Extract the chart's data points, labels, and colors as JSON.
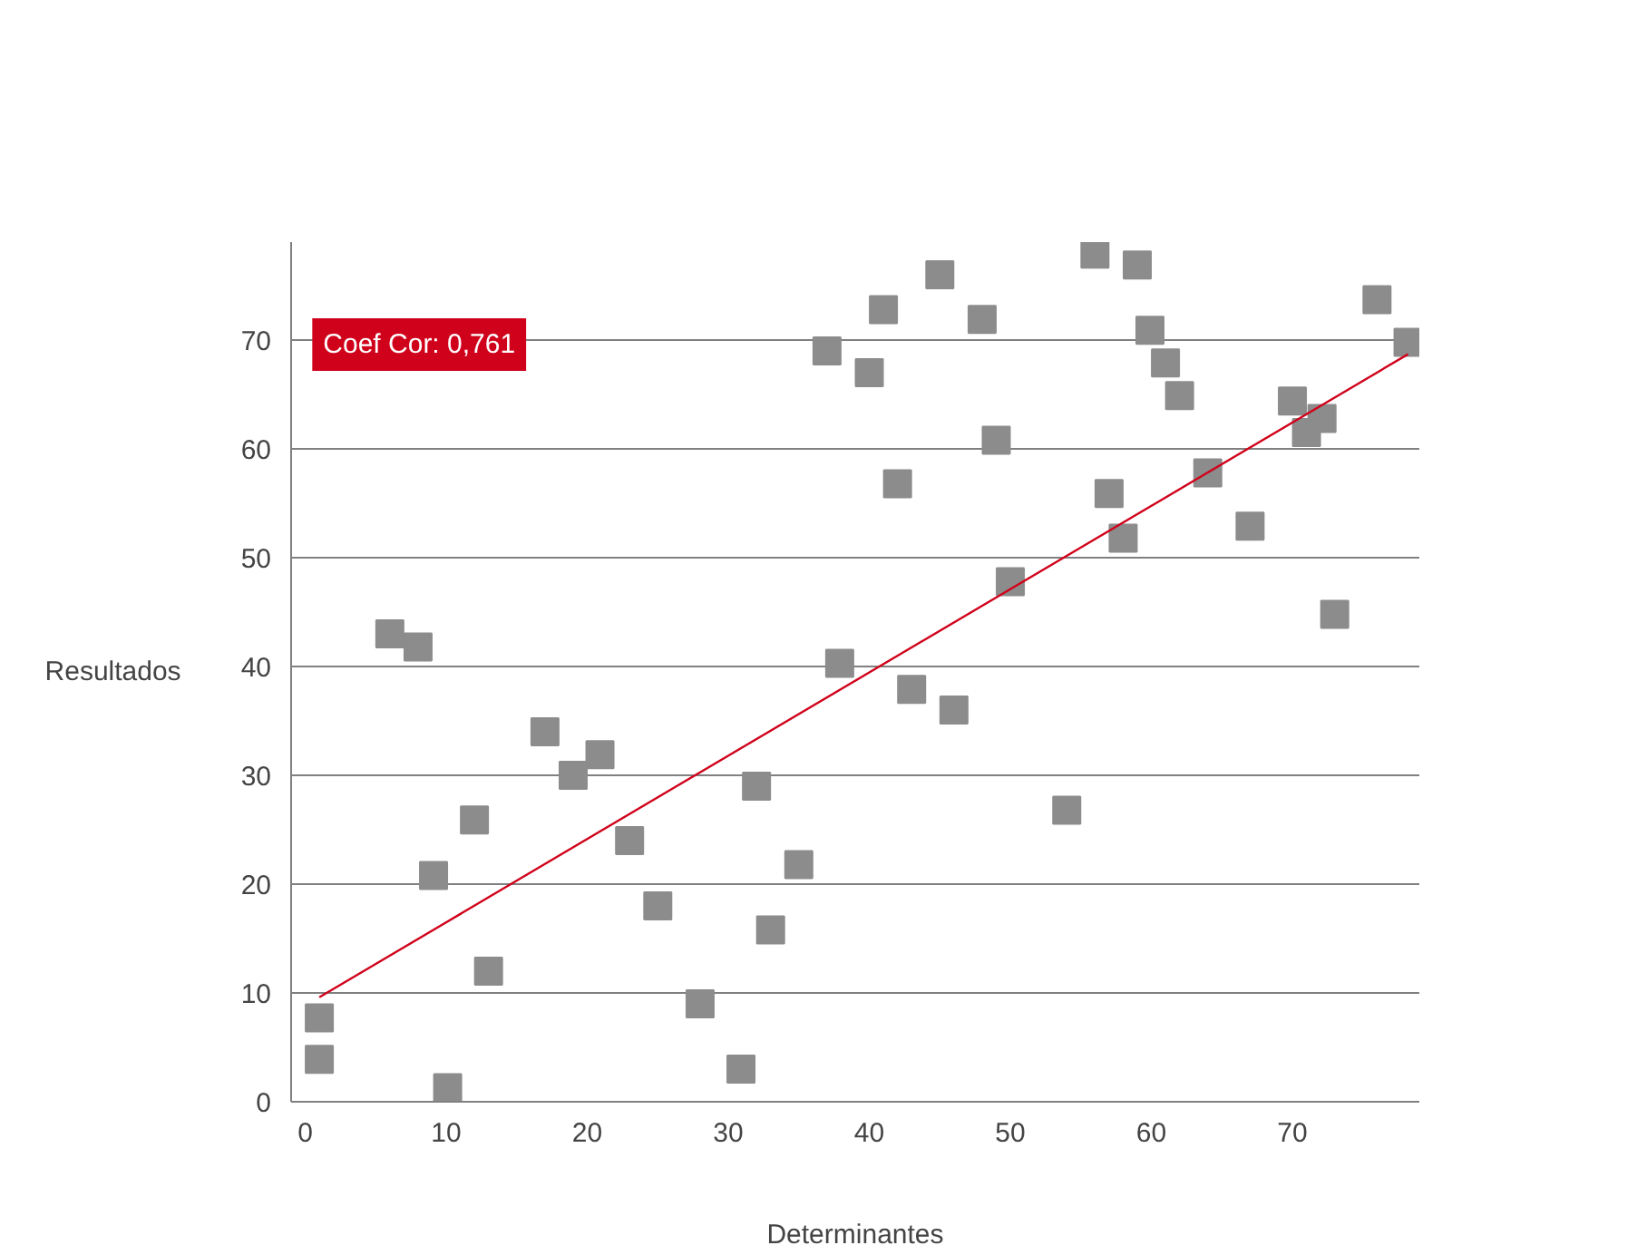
{
  "chart_data": {
    "type": "scatter",
    "xlabel": "Determinantes",
    "ylabel": "Resultados",
    "annotations": [
      "Coef Cor: 0,761"
    ],
    "xlim": [
      -1,
      79
    ],
    "ylim": [
      0,
      79
    ],
    "xticks": [
      0,
      10,
      20,
      30,
      40,
      50,
      60,
      70
    ],
    "yticks": [
      0,
      10,
      20,
      30,
      40,
      50,
      60,
      70
    ],
    "grid": "y",
    "series": [
      {
        "marker": "square",
        "color": "#8c8c8c",
        "x": [
          1,
          1,
          6,
          8,
          9.1,
          10.1,
          12,
          13,
          17,
          19,
          20.9,
          23,
          25,
          28,
          30.9,
          32,
          33,
          35,
          37,
          37.9,
          40,
          41,
          42,
          43,
          45,
          46,
          48,
          49,
          50,
          54,
          56,
          57,
          58,
          59,
          59.9,
          61,
          62,
          64,
          67,
          70,
          71,
          72.1,
          73,
          76,
          78.2
        ],
        "values": [
          7.7,
          3.9,
          43,
          41.8,
          20.8,
          1.3,
          25.9,
          12,
          34,
          30,
          31.9,
          24,
          18,
          9,
          3,
          29,
          15.8,
          21.8,
          69,
          40.3,
          67,
          72.8,
          56.8,
          37.9,
          76,
          36,
          71.9,
          60.8,
          47.8,
          26.8,
          77.9,
          55.9,
          51.8,
          76.9,
          70.9,
          67.9,
          64.9,
          57.8,
          52.9,
          64.4,
          61.5,
          62.8,
          44.8,
          73.7,
          69.8
        ]
      },
      {
        "type": "line",
        "color": "#d0021b",
        "x": [
          1,
          78.2
        ],
        "values": [
          9.6,
          68.7
        ]
      }
    ]
  }
}
